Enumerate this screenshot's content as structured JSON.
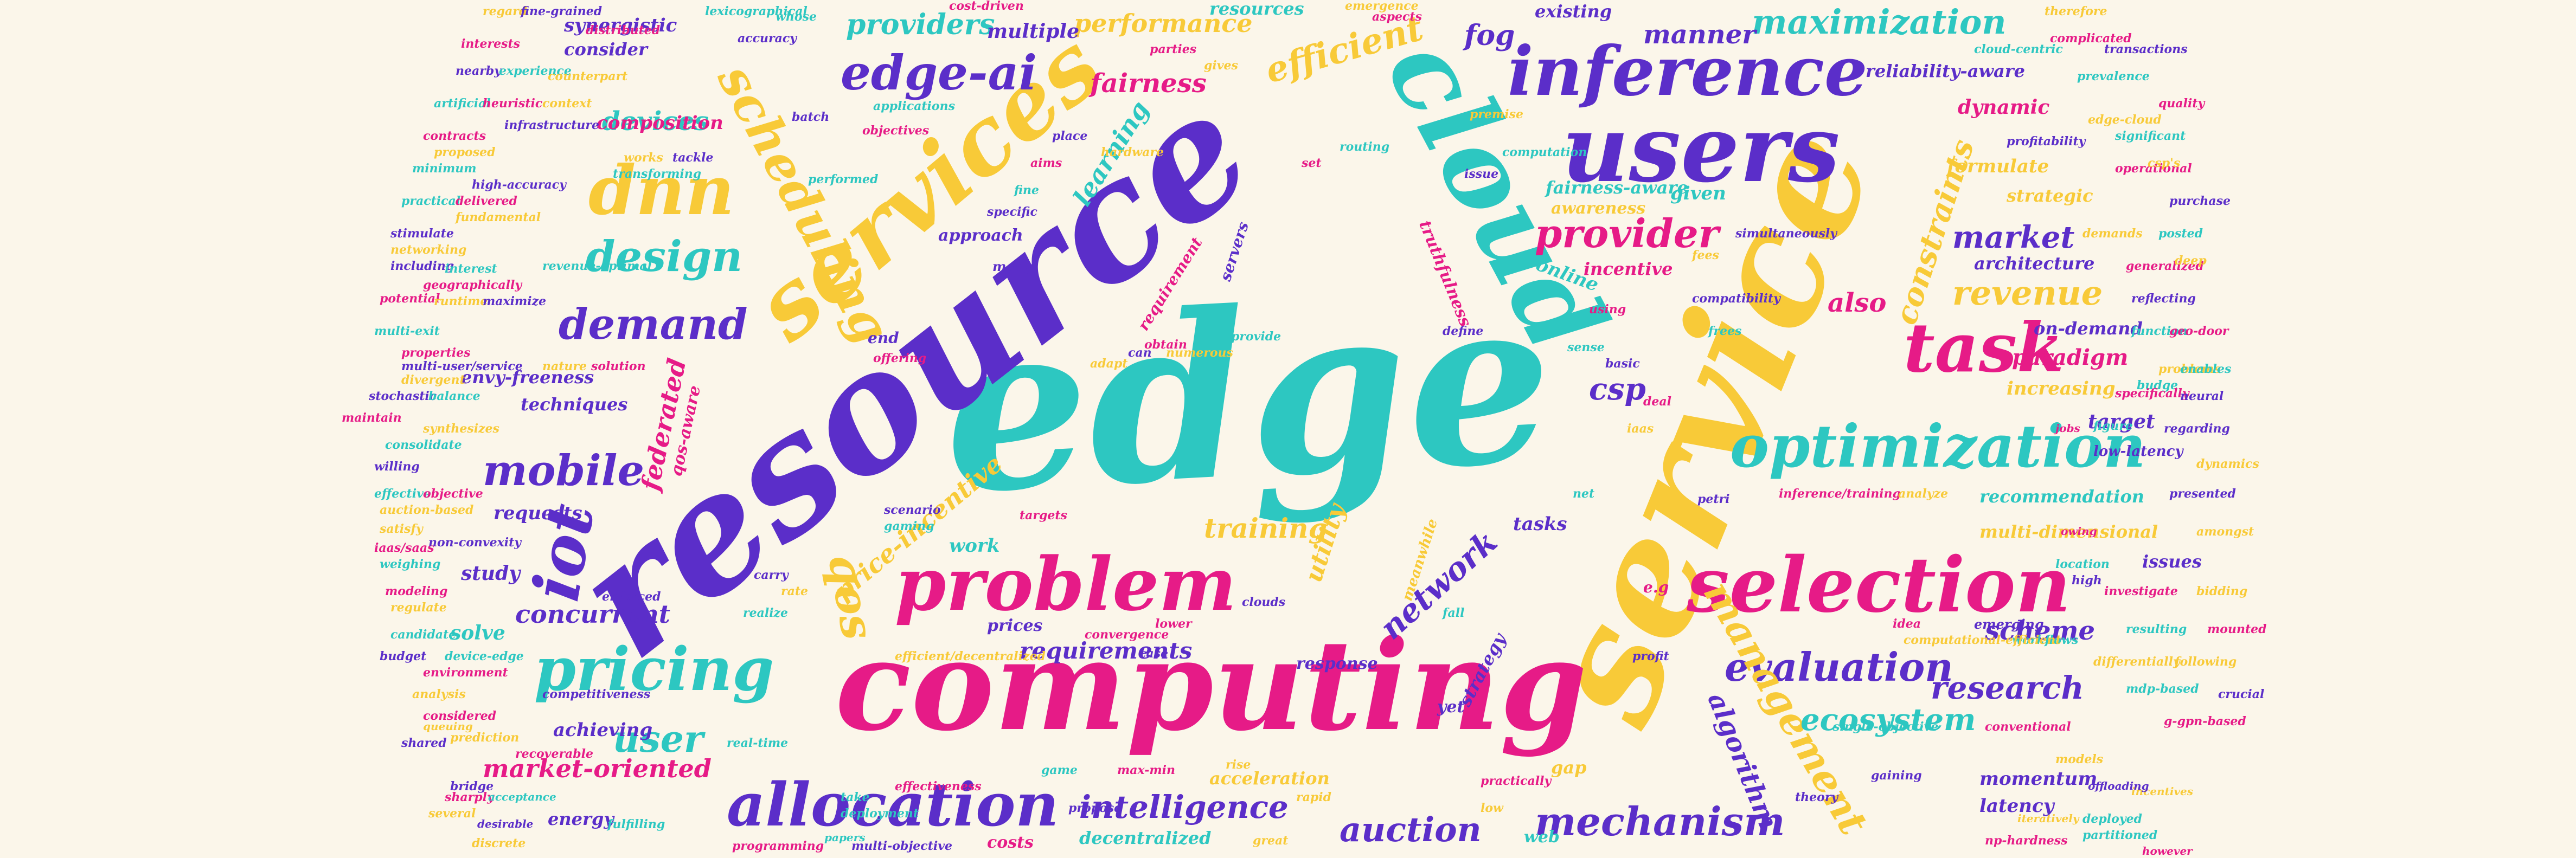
{
  "colors": {
    "background": "#fbf6ea",
    "teal": "#2dc7c1",
    "purple": "#5b2ec9",
    "yellow": "#f8ca38",
    "magenta": "#e61b87"
  },
  "words": {
    "edge": "edge",
    "resource": "resource",
    "service": "service",
    "computing": "computing",
    "cloud": "cloud",
    "services": "services",
    "users": "users",
    "inference": "inference",
    "selection": "selection",
    "problem": "problem",
    "allocation": "allocation",
    "pricing": "pricing",
    "edge_ai": "edge-ai",
    "scheduling": "scheduling",
    "optimization": "optimization",
    "task": "task",
    "dnn": "dnn",
    "iot": "iot",
    "mobile": "mobile",
    "demand": "demand",
    "design": "design",
    "qos": "qos",
    "evaluation": "evaluation",
    "mechanism": "mechanism",
    "management": "management",
    "provider": "provider",
    "maximization": "maximization",
    "revenue": "revenue",
    "network": "network",
    "intelligence": "intelligence",
    "auction": "auction",
    "research": "research",
    "ecosystem": "ecosystem",
    "efficient": "efficient",
    "providers": "providers",
    "performance": "performance",
    "fairness": "fairness",
    "devices": "devices",
    "composition": "composition",
    "market": "market",
    "constraints": "constraints",
    "learning": "learning",
    "price_incentive": "price-incentive",
    "federated": "federated",
    "training": "training",
    "user": "user",
    "market_oriented": "market-oriented",
    "concurrent": "concurrent",
    "utility": "utility",
    "csp": "csp",
    "algorithm": "algorithm",
    "requirements": "requirements",
    "scheme": "scheme",
    "also": "also",
    "paradigm": "paradigm",
    "manner": "manner",
    "fog": "fog",
    "resources": "resources",
    "multiple": "multiple",
    "existing": "existing",
    "synergistic": "synergistic",
    "consider": "consider",
    "fairness_aware": "fairness-aware",
    "awareness": "awareness",
    "strategic": "strategic",
    "formulate": "formulate",
    "reliability_aware": "reliability-aware",
    "dynamic": "dynamic",
    "architecture": "architecture",
    "incentive": "incentive",
    "truthfulness": "truthfulness",
    "online": "online",
    "given": "given",
    "on_demand": "on-demand",
    "increasing": "increasing",
    "target": "target",
    "recommendation": "recommendation",
    "multi_dimensional": "multi-dimensional",
    "issues": "issues",
    "work": "work",
    "tasks": "tasks",
    "study": "study",
    "solve": "solve",
    "requests": "requests",
    "techniques": "techniques",
    "envy_freeness": "envy-freeness",
    "achieving": "achieving",
    "energy": "energy",
    "qos_aware": "qos-aware",
    "prices": "prices",
    "response": "response",
    "strategy": "strategy",
    "acceleration": "acceleration",
    "decentralized": "decentralized",
    "costs": "costs",
    "latency": "latency",
    "momentum": "momentum",
    "web": "web",
    "yet": "yet",
    "approach": "approach",
    "servers": "servers",
    "meanwhile": "meanwhile",
    "end": "end",
    "many": "many",
    "requirement": "requirement",
    "gap": "gap",
    "e_g": "e.g",
    "low_latency": "low-latency",
    "budge": "budge",
    "specifically": "specifically",
    "problems": "problems",
    "regarding": "regarding",
    "figure": "figure",
    "jobs": "jobs",
    "dynamics": "dynamics",
    "neural": "neural",
    "enables": "enables",
    "owing": "owing",
    "amongst": "amongst",
    "presented": "presented",
    "conduct": "conduct",
    "location": "location",
    "investigate": "investigate",
    "bidding": "bidding",
    "high": "high",
    "resulting": "resulting",
    "mounted": "mounted",
    "following": "following",
    "crucial": "crucial",
    "mdp_based": "mdp-based",
    "g_gpn_based": "g-gpn-based",
    "differentially": "differentially",
    "emerging": "emerging",
    "workflows": "workflows",
    "idea": "idea",
    "computational_efficient": "computational-efficient",
    "profit": "profit",
    "single_objective": "single-objective",
    "conventional": "conventional",
    "models": "models",
    "gaining": "gaining",
    "partitioned": "partitioned",
    "however": "however",
    "incentives": "incentives",
    "offloading": "offloading",
    "deployed": "deployed",
    "np_hardness": "np-hardness",
    "iteratively": "iteratively",
    "theory": "theory",
    "game": "game",
    "max_min": "max-min",
    "rise": "rise",
    "propose": "propose",
    "deployment": "deployment",
    "effectiveness": "effectiveness",
    "great": "great",
    "multi_objective": "multi-objective",
    "papers": "papers",
    "programming": "programming",
    "discrete": "discrete",
    "desirable": "desirable",
    "fulfilling": "fulfilling",
    "sharply": "sharply",
    "several": "several",
    "bridge": "bridge",
    "acceptance": "acceptance",
    "recoverable": "recoverable",
    "prediction": "prediction",
    "shared": "shared",
    "real_time": "real-time",
    "considered": "considered",
    "analysis": "analysis",
    "budget": "budget",
    "device_edge": "device-edge",
    "environment": "environment",
    "queuing": "queuing",
    "competitiveness": "competitiveness",
    "candidate": "candidate",
    "modeling": "modeling",
    "regulate": "regulate",
    "enforced": "enforced",
    "weighing": "weighing",
    "iaas_saas": "iaas/saas",
    "satisfy": "satisfy",
    "non_convexity": "non-convexity",
    "effective": "effective",
    "objective": "objective",
    "auction_based": "auction-based",
    "willing": "willing",
    "consolidate": "consolidate",
    "maintain": "maintain",
    "synthesizes": "synthesizes",
    "stochastic": "stochastic",
    "balance": "balance",
    "properties": "properties",
    "divergent": "divergent",
    "multi_user_service": "multi-user/service",
    "multi_exit": "multi-exit",
    "potential": "potential",
    "runtime": "runtime",
    "maximize": "maximize",
    "revenue_optimal": "revenue-optimal",
    "solution": "solution",
    "nature": "nature",
    "including": "including",
    "interest": "interest",
    "geographically": "geographically",
    "networking": "networking",
    "stimulate": "stimulate",
    "practical": "practical",
    "delivered": "delivered",
    "fundamental": "fundamental",
    "high_accuracy": "high-accuracy",
    "minimum": "minimum",
    "contracts": "contracts",
    "proposed": "proposed",
    "infrastructure": "infrastructure",
    "artificial": "artificial",
    "heuristic": "heuristic",
    "context": "context",
    "nearby": "nearby",
    "experience": "experience",
    "interests": "interests",
    "regard": "regard",
    "fine_grained": "fine-grained",
    "lexicographical": "lexicographical",
    "distributed": "distributed",
    "counterpart": "counterpart",
    "accuracy": "accuracy",
    "whose": "whose",
    "cost_driven": "cost-driven",
    "gives": "gives",
    "batch": "batch",
    "applications": "applications",
    "objectives": "objectives",
    "works": "works",
    "tackle": "tackle",
    "transforming": "transforming",
    "aims": "aims",
    "hardware": "hardware",
    "place": "place",
    "routing": "routing",
    "set": "set",
    "premise": "premise",
    "issue": "issue",
    "computation": "computation",
    "aspects": "aspects",
    "emergence": "emergence",
    "simultaneously": "simultaneously",
    "cloud_centric": "cloud-centric",
    "complicated": "complicated",
    "therefore": "therefore",
    "transactions": "transactions",
    "prevalence": "prevalence",
    "quality": "quality",
    "edge_cloud": "edge-cloud",
    "profitability": "profitability",
    "significant": "significant",
    "operational": "operational",
    "csps": "csp's",
    "purchase": "purchase",
    "posted": "posted",
    "generalized": "generalized",
    "deep": "deep",
    "reflecting": "reflecting",
    "function": "function",
    "geo_door": "geo-door",
    "demands": "demands",
    "specific": "specific",
    "fine": "fine",
    "obtain": "obtain",
    "numerous": "numerous",
    "can": "can",
    "provide": "provide",
    "offering": "offering",
    "adapt": "adapt",
    "scenario": "scenario",
    "gaming": "gaming",
    "targets": "targets",
    "rate": "rate",
    "carry": "carry",
    "realize": "realize",
    "convergence": "convergence",
    "efficient_decentralized": "efficient/decentralized",
    "case": "case",
    "take": "take",
    "lower": "lower",
    "rapid": "rapid",
    "clouds": "clouds",
    "fall": "fall",
    "practically": "practically",
    "low": "low",
    "petri": "petri",
    "net": "net",
    "deal": "deal",
    "iaas": "iaas",
    "basic": "basic",
    "frees": "frees",
    "inference_training": "inference/training",
    "analyze": "analyze",
    "compatibility": "compatibility",
    "sense": "sense",
    "using": "using",
    "fees": "fees",
    "define": "define",
    "performed": "performed",
    "parties": "parties"
  }
}
